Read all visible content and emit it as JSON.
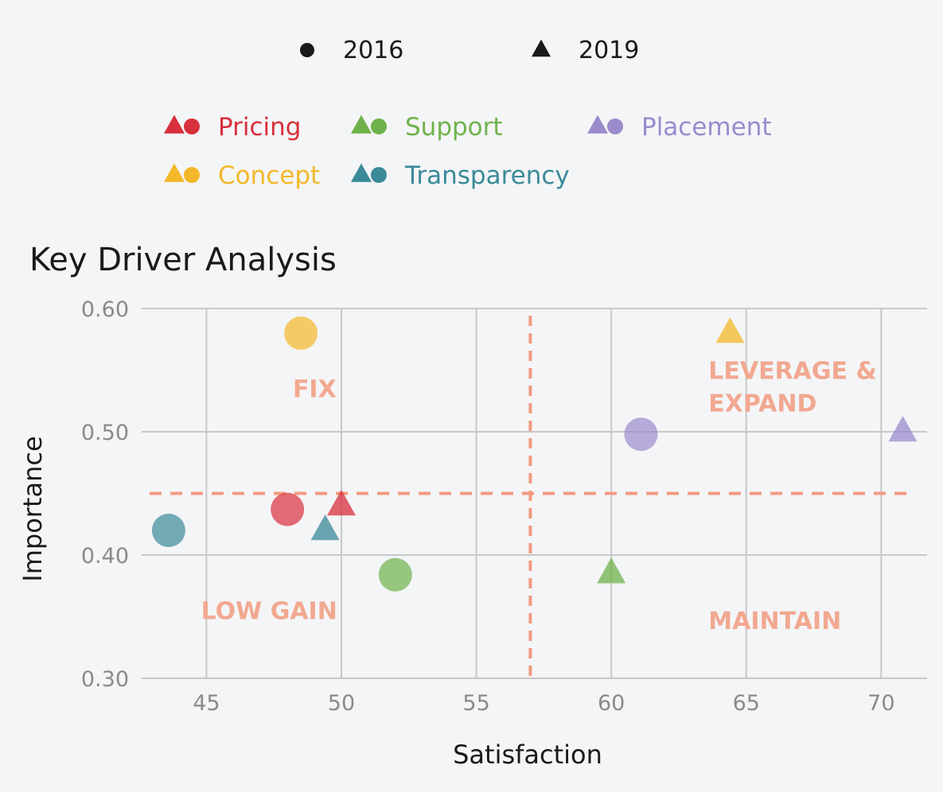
{
  "chart_data": {
    "type": "scatter",
    "title": "Key Driver Analysis",
    "xlabel": "Satisfaction",
    "ylabel": "Importance",
    "xlim": [
      42.6,
      71.7
    ],
    "ylim": [
      0.3,
      0.6
    ],
    "xticks": [
      45,
      50,
      55,
      60,
      65,
      70
    ],
    "yticks": [
      0.3,
      0.4,
      0.5,
      0.6
    ],
    "xtick_labels": [
      "45",
      "50",
      "55",
      "60",
      "65",
      "70"
    ],
    "ytick_labels": [
      "0.30",
      "0.40",
      "0.50",
      "0.60"
    ],
    "grid": true,
    "marker_legend": [
      {
        "label": "2016",
        "marker": "circle"
      },
      {
        "label": "2019",
        "marker": "triangle"
      }
    ],
    "series": [
      {
        "name": "Pricing",
        "color": "#d82f3c",
        "points": [
          {
            "year": "2016",
            "x": 48.0,
            "y": 0.437
          },
          {
            "year": "2019",
            "x": 50.0,
            "y": 0.44
          }
        ]
      },
      {
        "name": "Support",
        "color": "#6fb24b",
        "points": [
          {
            "year": "2016",
            "x": 52.0,
            "y": 0.384
          },
          {
            "year": "2019",
            "x": 60.0,
            "y": 0.385
          }
        ]
      },
      {
        "name": "Placement",
        "color": "#9b8bcc",
        "points": [
          {
            "year": "2016",
            "x": 61.1,
            "y": 0.498
          },
          {
            "year": "2019",
            "x": 70.8,
            "y": 0.5
          }
        ]
      },
      {
        "name": "Concept",
        "color": "#f3b829",
        "points": [
          {
            "year": "2016",
            "x": 48.5,
            "y": 0.58
          },
          {
            "year": "2019",
            "x": 64.4,
            "y": 0.58
          }
        ]
      },
      {
        "name": "Transparency",
        "color": "#3b8a98",
        "points": [
          {
            "year": "2016",
            "x": 43.6,
            "y": 0.42
          },
          {
            "year": "2019",
            "x": 49.4,
            "y": 0.42
          }
        ]
      }
    ],
    "reference_lines": {
      "x": 57.0,
      "y": 0.45,
      "color": "#f29a80"
    },
    "quadrant_labels": [
      {
        "lines": [
          "FIX"
        ],
        "x": 48.2,
        "y": 0.528
      },
      {
        "lines": [
          "LEVERAGE &",
          "EXPAND"
        ],
        "x": 63.6,
        "y": 0.543
      },
      {
        "lines": [
          "LOW GAIN"
        ],
        "x": 44.8,
        "y": 0.348
      },
      {
        "lines": [
          "MAINTAIN"
        ],
        "x": 63.6,
        "y": 0.34
      }
    ],
    "quadrant_label_color": "#f2a890",
    "tick_color": "#8a8a8a",
    "grid_color": "#c8c8c8"
  }
}
